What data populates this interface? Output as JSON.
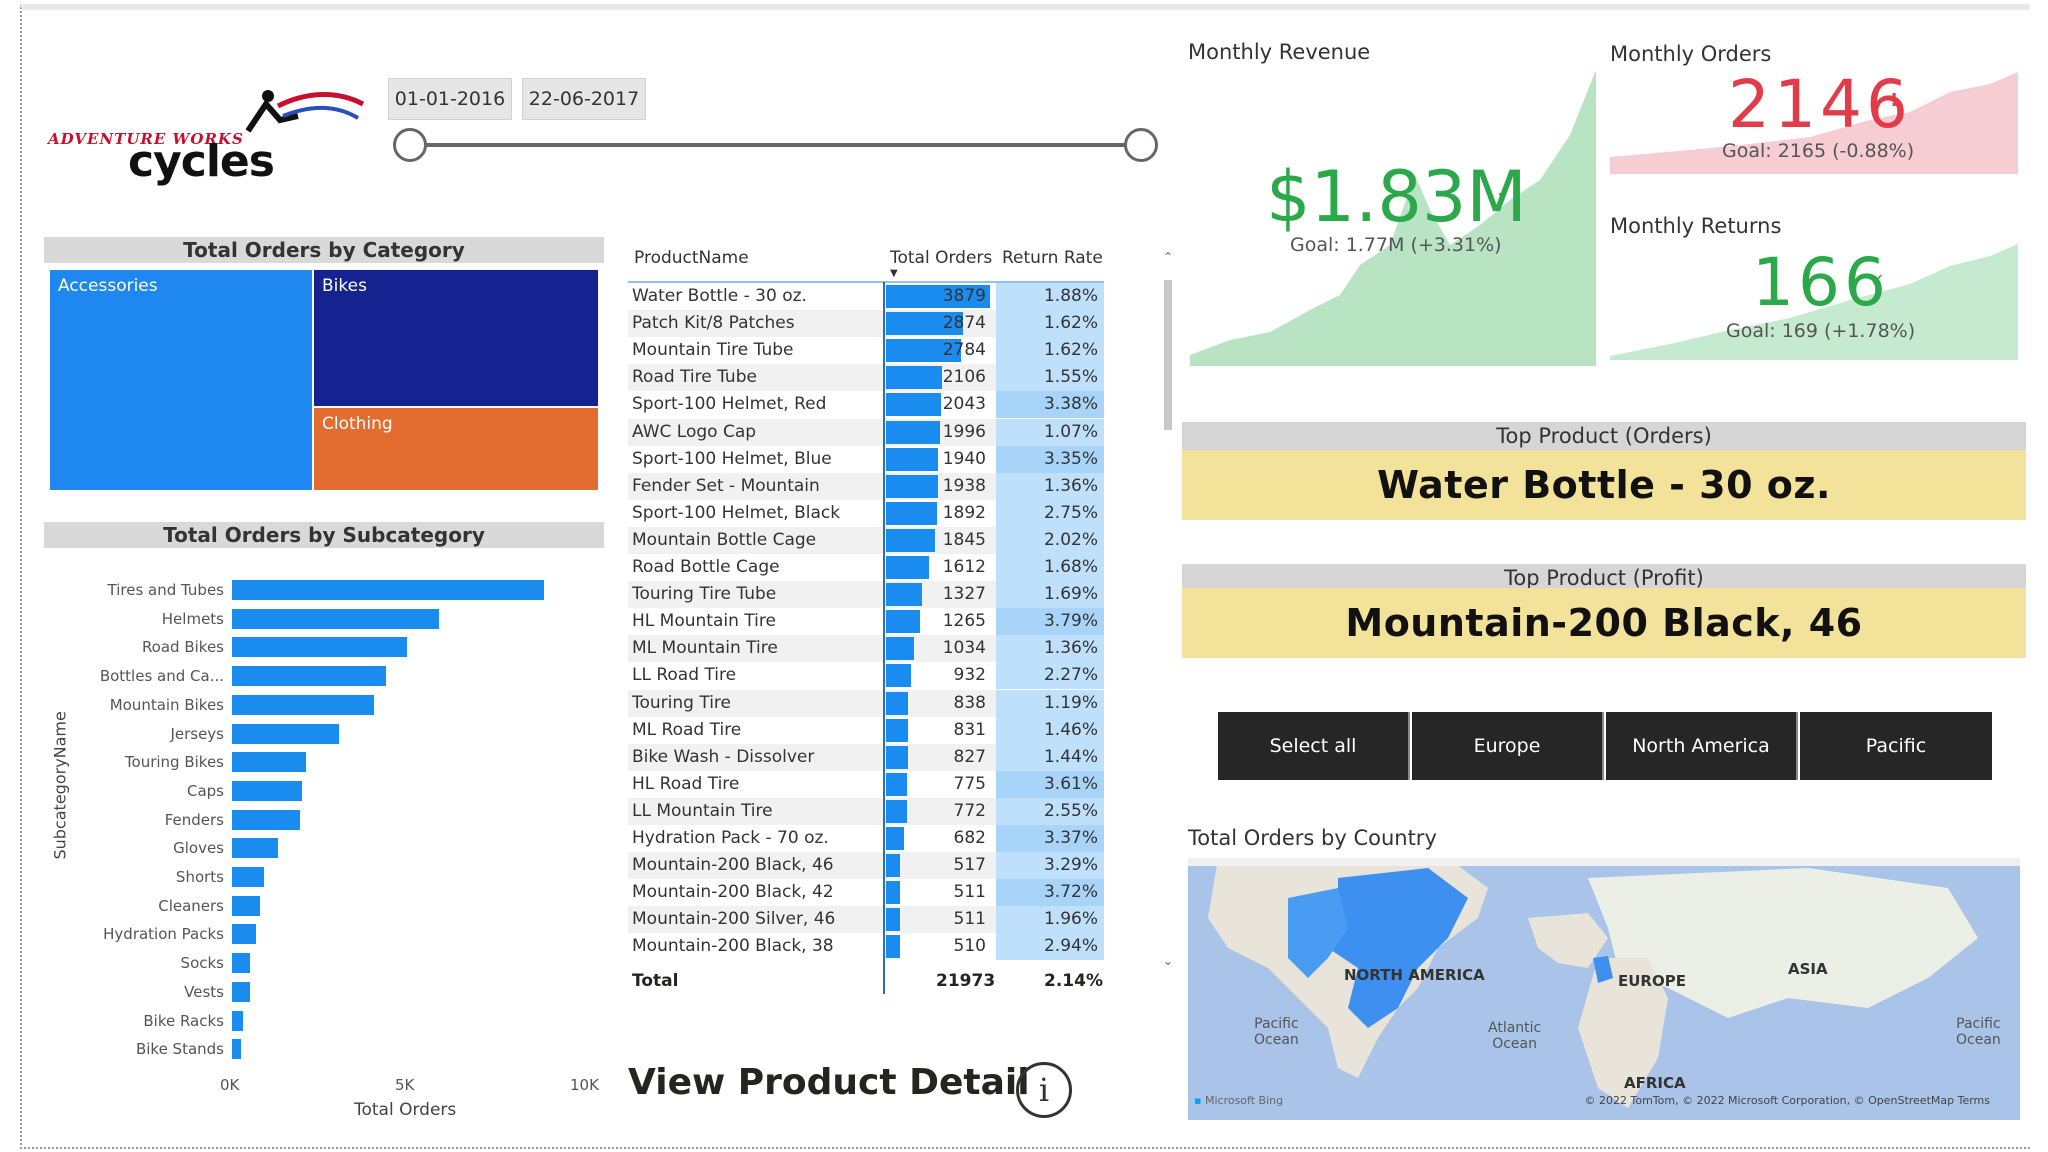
{
  "logo": {
    "top_text": "ADVENTURE WORKS",
    "main_text": "cycles"
  },
  "date_slicer": {
    "start": "01-01-2016",
    "end": "22-06-2017"
  },
  "category_chart": {
    "title": "Total Orders by Category",
    "categories": [
      {
        "label": "Accessories",
        "color": "#1e88f0"
      },
      {
        "label": "Bikes",
        "color": "#14238f"
      },
      {
        "label": "Clothing",
        "color": "#e36c30"
      }
    ]
  },
  "subcategory_chart": {
    "title": "Total Orders by Subcategory"
  },
  "chart_data": {
    "type": "bar",
    "orientation": "horizontal",
    "categories": [
      "Tires and Tubes",
      "Helmets",
      "Road Bikes",
      "Bottles and Ca...",
      "Mountain Bikes",
      "Jerseys",
      "Touring Bikes",
      "Caps",
      "Fenders",
      "Gloves",
      "Shorts",
      "Cleaners",
      "Hydration Packs",
      "Socks",
      "Vests",
      "Bike Racks",
      "Bike Stands"
    ],
    "values": [
      8900,
      5900,
      5000,
      4400,
      4050,
      3050,
      2100,
      2000,
      1950,
      1300,
      900,
      800,
      680,
      500,
      500,
      300,
      250
    ],
    "xlabel": "Total Orders",
    "ylabel": "SubcategoryName",
    "xlim": [
      0,
      10000
    ],
    "x_ticks": [
      "0K",
      "5K",
      "10K"
    ],
    "grid": false
  },
  "product_table": {
    "headers": {
      "name": "ProductName",
      "orders": "Total Orders",
      "rate": "Return Rate"
    },
    "rows": [
      {
        "name": "Water Bottle - 30 oz.",
        "orders": "3879",
        "rate": "1.88%",
        "value": 3879
      },
      {
        "name": "Patch Kit/8 Patches",
        "orders": "2874",
        "rate": "1.62%",
        "value": 2874
      },
      {
        "name": "Mountain Tire Tube",
        "orders": "2784",
        "rate": "1.62%",
        "value": 2784
      },
      {
        "name": "Road Tire Tube",
        "orders": "2106",
        "rate": "1.55%",
        "value": 2106
      },
      {
        "name": "Sport-100 Helmet, Red",
        "orders": "2043",
        "rate": "3.38%",
        "value": 2043
      },
      {
        "name": "AWC Logo Cap",
        "orders": "1996",
        "rate": "1.07%",
        "value": 1996
      },
      {
        "name": "Sport-100 Helmet, Blue",
        "orders": "1940",
        "rate": "3.35%",
        "value": 1940
      },
      {
        "name": "Fender Set - Mountain",
        "orders": "1938",
        "rate": "1.36%",
        "value": 1938
      },
      {
        "name": "Sport-100 Helmet, Black",
        "orders": "1892",
        "rate": "2.75%",
        "value": 1892
      },
      {
        "name": "Mountain Bottle Cage",
        "orders": "1845",
        "rate": "2.02%",
        "value": 1845
      },
      {
        "name": "Road Bottle Cage",
        "orders": "1612",
        "rate": "1.68%",
        "value": 1612
      },
      {
        "name": "Touring Tire Tube",
        "orders": "1327",
        "rate": "1.69%",
        "value": 1327
      },
      {
        "name": "HL Mountain Tire",
        "orders": "1265",
        "rate": "3.79%",
        "value": 1265
      },
      {
        "name": "ML Mountain Tire",
        "orders": "1034",
        "rate": "1.36%",
        "value": 1034
      },
      {
        "name": "LL Road Tire",
        "orders": "932",
        "rate": "2.27%",
        "value": 932
      },
      {
        "name": "Touring Tire",
        "orders": "838",
        "rate": "1.19%",
        "value": 838
      },
      {
        "name": "ML Road Tire",
        "orders": "831",
        "rate": "1.46%",
        "value": 831
      },
      {
        "name": "Bike Wash - Dissolver",
        "orders": "827",
        "rate": "1.44%",
        "value": 827
      },
      {
        "name": "HL Road Tire",
        "orders": "775",
        "rate": "3.61%",
        "value": 775
      },
      {
        "name": "LL Mountain Tire",
        "orders": "772",
        "rate": "2.55%",
        "value": 772
      },
      {
        "name": "Hydration Pack - 70 oz.",
        "orders": "682",
        "rate": "3.37%",
        "value": 682
      },
      {
        "name": "Mountain-200 Black, 46",
        "orders": "517",
        "rate": "3.29%",
        "value": 517
      },
      {
        "name": "Mountain-200 Black, 42",
        "orders": "511",
        "rate": "3.72%",
        "value": 511
      },
      {
        "name": "Mountain-200 Silver, 46",
        "orders": "511",
        "rate": "1.96%",
        "value": 511
      },
      {
        "name": "Mountain-200 Black, 38",
        "orders": "510",
        "rate": "2.94%",
        "value": 510
      }
    ],
    "total": {
      "label": "Total",
      "orders": "21973",
      "rate": "2.14%"
    }
  },
  "view_detail": {
    "label": "View Product Detail",
    "icon_glyph": "i"
  },
  "kpis": {
    "revenue": {
      "title": "Monthly Revenue",
      "value": "$1.83M",
      "goal": "Goal: 1.77M (+3.31%)",
      "status_color": "#2aa84a"
    },
    "orders": {
      "title": "Monthly Orders",
      "value": "2146",
      "goal": "Goal: 2165 (-0.88%)",
      "status_color": "#e23b4a"
    },
    "returns": {
      "title": "Monthly Returns",
      "value": "166",
      "goal": "Goal: 169 (+1.78%)",
      "status_color": "#2aa84a"
    }
  },
  "top_product_orders": {
    "title": "Top Product (Orders)",
    "value": "Water Bottle - 30 oz."
  },
  "top_product_profit": {
    "title": "Top Product (Profit)",
    "value": "Mountain-200 Black, 46"
  },
  "regions": [
    "Select all",
    "Europe",
    "North America",
    "Pacific"
  ],
  "map": {
    "title": "Total Orders by Country",
    "labels": {
      "north_america": "NORTH AMERICA",
      "europe": "EUROPE",
      "asia": "ASIA",
      "africa": "AFRICA"
    },
    "oceans": {
      "pacific_left": "Pacific\nOcean",
      "atlantic": "Atlantic\nOcean",
      "pacific_right": "Pacific\nOcean"
    },
    "attribution": "© 2022 TomTom, © 2022 Microsoft Corporation, © OpenStreetMap  Terms",
    "brand": "Microsoft Bing"
  }
}
